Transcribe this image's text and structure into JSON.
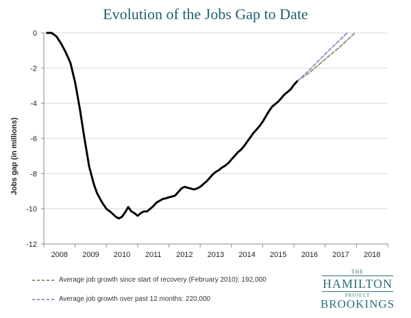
{
  "chart_data": {
    "type": "line",
    "title": "Evolution of the Jobs Gap to Date",
    "ylabel": "Jobs gap (in millions)",
    "xlabel": "",
    "ylim": [
      -12,
      0
    ],
    "xlim": [
      2007.5,
      2018.5
    ],
    "y_ticks": [
      "0",
      "-2",
      "-4",
      "-6",
      "-8",
      "-10",
      "-12"
    ],
    "x_ticks": [
      "2008",
      "2009",
      "2010",
      "2011",
      "2012",
      "2013",
      "2014",
      "2015",
      "2016",
      "2017",
      "2018"
    ],
    "grid": "horizontal",
    "series": [
      {
        "color": "#000000",
        "style": "solid",
        "x": [
          2007.6,
          2007.75,
          2007.9,
          2008.05,
          2008.2,
          2008.35,
          2008.5,
          2008.65,
          2008.8,
          2008.95,
          2009.1,
          2009.2,
          2009.35,
          2009.5,
          2009.65,
          2009.8,
          2009.9,
          2010.0,
          2010.1,
          2010.2,
          2010.3,
          2010.4,
          2010.5,
          2010.6,
          2010.7,
          2010.8,
          2010.9,
          2011.0,
          2011.1,
          2011.2,
          2011.3,
          2011.4,
          2011.5,
          2011.6,
          2011.7,
          2011.8,
          2011.9,
          2012.0,
          2012.1,
          2012.2,
          2012.3,
          2012.4,
          2012.5,
          2012.6,
          2012.7,
          2012.8,
          2012.9,
          2013.0,
          2013.1,
          2013.2,
          2013.3,
          2013.4,
          2013.5,
          2013.6,
          2013.7,
          2013.8,
          2013.9,
          2014.0,
          2014.1,
          2014.2,
          2014.3,
          2014.4,
          2014.5,
          2014.6,
          2014.7,
          2014.8,
          2014.9,
          2015.0,
          2015.1,
          2015.2,
          2015.3,
          2015.4,
          2015.5,
          2015.6
        ],
        "y": [
          0.0,
          0.0,
          -0.2,
          -0.6,
          -1.1,
          -1.7,
          -2.8,
          -4.3,
          -6.0,
          -7.6,
          -8.6,
          -9.1,
          -9.6,
          -10.0,
          -10.2,
          -10.45,
          -10.55,
          -10.45,
          -10.2,
          -9.9,
          -10.15,
          -10.25,
          -10.4,
          -10.25,
          -10.15,
          -10.15,
          -10.0,
          -9.85,
          -9.65,
          -9.55,
          -9.45,
          -9.4,
          -9.35,
          -9.3,
          -9.25,
          -9.05,
          -8.85,
          -8.75,
          -8.8,
          -8.85,
          -8.9,
          -8.85,
          -8.75,
          -8.6,
          -8.45,
          -8.25,
          -8.05,
          -7.9,
          -7.8,
          -7.65,
          -7.55,
          -7.4,
          -7.2,
          -7.0,
          -6.8,
          -6.65,
          -6.45,
          -6.2,
          -5.95,
          -5.7,
          -5.5,
          -5.3,
          -5.05,
          -4.75,
          -4.45,
          -4.2,
          -4.05,
          -3.9,
          -3.7,
          -3.5,
          -3.35,
          -3.2,
          -2.95,
          -2.75
        ]
      },
      {
        "name": "Average job growth since start of recovery (February 2010): 192,000",
        "color": "#8a9a78",
        "style": "dashed",
        "x": [
          2015.6,
          2016.0,
          2016.5,
          2017.0,
          2017.45
        ],
        "y": [
          -2.75,
          -2.25,
          -1.5,
          -0.75,
          0.0
        ]
      },
      {
        "name": "Average job growth over past 12 months: 220,000",
        "color": "#a98bc7",
        "style": "dashed",
        "x": [
          2015.6,
          2016.0,
          2016.5,
          2017.0,
          2017.2
        ],
        "y": [
          -2.75,
          -2.1,
          -1.2,
          -0.35,
          0.0
        ]
      }
    ]
  },
  "logo": {
    "the": "THE",
    "name": "HAMILTON",
    "project": "PROJECT",
    "org": "BROOKINGS"
  }
}
